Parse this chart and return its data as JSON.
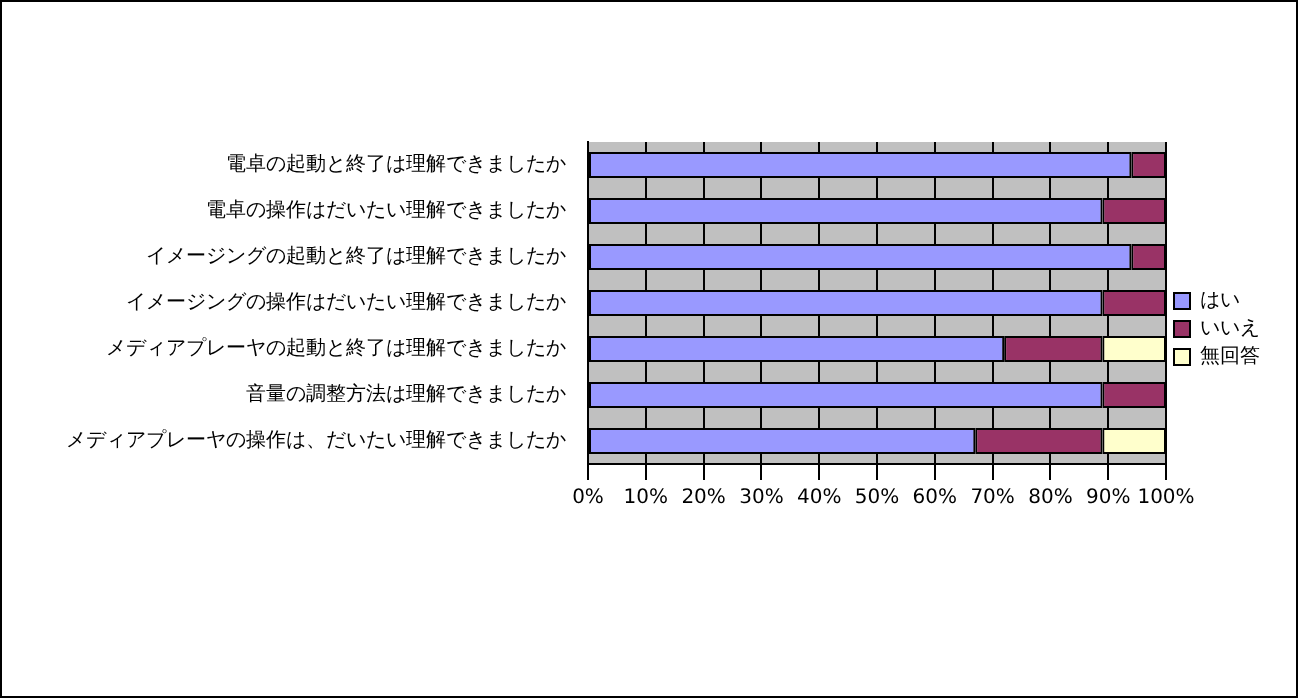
{
  "chart_data": {
    "type": "bar",
    "orientation": "horizontal",
    "stacked": true,
    "categories": [
      "電卓の起動と終了は理解できましたか",
      "電卓の操作はだいたい理解できましたか",
      "イメージングの起動と終了は理解できましたか",
      "イメージングの操作はだいたい理解できましたか",
      "メディアプレーヤの起動と終了は理解できましたか",
      "音量の調整方法は理解できましたか",
      "メディアプレーヤの操作は、だいたい理解できましたか"
    ],
    "series": [
      {
        "name": "はい",
        "color": "#9999ff",
        "values": [
          94,
          89,
          94,
          89,
          72,
          89,
          67
        ]
      },
      {
        "name": "いいえ",
        "color": "#993366",
        "values": [
          6,
          11,
          6,
          11,
          17,
          11,
          22
        ]
      },
      {
        "name": "無回答",
        "color": "#ffffcc",
        "values": [
          0,
          0,
          0,
          0,
          11,
          0,
          11
        ]
      }
    ],
    "xlim": [
      0,
      100
    ],
    "xticks": [
      {
        "value": 0,
        "label": "0%"
      },
      {
        "value": 10,
        "label": "10%"
      },
      {
        "value": 20,
        "label": "20%"
      },
      {
        "value": 30,
        "label": "30%"
      },
      {
        "value": 40,
        "label": "40%"
      },
      {
        "value": 50,
        "label": "50%"
      },
      {
        "value": 60,
        "label": "60%"
      },
      {
        "value": 70,
        "label": "70%"
      },
      {
        "value": 80,
        "label": "80%"
      },
      {
        "value": 90,
        "label": "90%"
      },
      {
        "value": 100,
        "label": "100%"
      }
    ],
    "grid": "x",
    "legend": "right"
  }
}
